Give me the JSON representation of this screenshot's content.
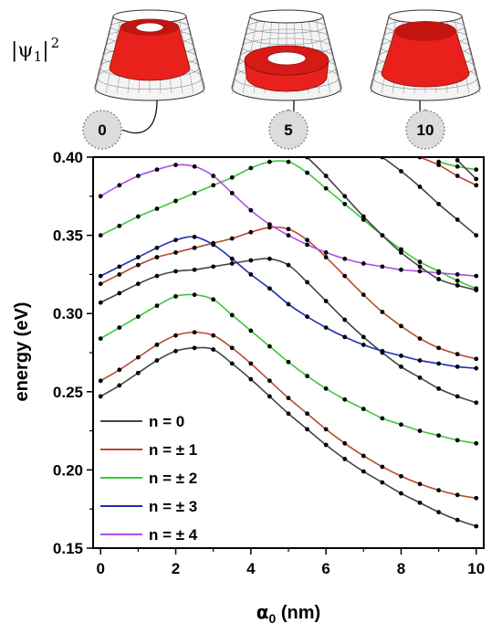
{
  "header": {
    "label_prefix": "|ψ",
    "label_sub": "1",
    "label_suffix": "|",
    "label_sup": "2",
    "insets": [
      {
        "alpha": "0",
        "shape": "ring"
      },
      {
        "alpha": "5",
        "shape": "torus"
      },
      {
        "alpha": "10",
        "shape": "dome"
      }
    ],
    "wire_color": "#333333",
    "density_color": "#e8211c"
  },
  "chart_data": {
    "type": "line",
    "xlabel_symbol": "α",
    "xlabel_sub": "0",
    "xlabel_unit": " (nm)",
    "ylabel": "energy (eV)",
    "xlim": [
      -0.2,
      10.2
    ],
    "ylim": [
      0.15,
      0.4
    ],
    "xticks": [
      0,
      2,
      4,
      6,
      8,
      10
    ],
    "yticks": [
      0.15,
      0.2,
      0.25,
      0.3,
      0.35,
      0.4
    ],
    "ytick_labels": [
      "0.15",
      "0.20",
      "0.25",
      "0.30",
      "0.35",
      "0.40"
    ],
    "grid": false,
    "legend_position": "bottom-left",
    "legend": [
      {
        "label": "n = 0",
        "color": "#444444"
      },
      {
        "label": "n = ± 1",
        "color": "#b84a2e"
      },
      {
        "label": "n = ± 2",
        "color": "#3ec83c"
      },
      {
        "label": "n = ± 3",
        "color": "#1f2fb8"
      },
      {
        "label": "n = ± 4",
        "color": "#b04cf0"
      }
    ],
    "x": [
      0,
      0.5,
      1,
      1.5,
      2,
      2.5,
      3,
      3.5,
      4,
      4.5,
      5,
      5.5,
      6,
      6.5,
      7,
      7.5,
      8,
      8.5,
      9,
      9.5,
      10
    ],
    "series": [
      {
        "legend_index": 0,
        "values": [
          0.247,
          0.254,
          0.262,
          0.27,
          0.276,
          0.278,
          0.277,
          0.268,
          0.258,
          0.247,
          0.236,
          0.226,
          0.216,
          0.207,
          0.199,
          0.192,
          0.185,
          0.179,
          0.173,
          0.168,
          0.164
        ]
      },
      {
        "legend_index": 1,
        "values": [
          0.257,
          0.264,
          0.272,
          0.28,
          0.286,
          0.288,
          0.286,
          0.278,
          0.268,
          0.257,
          0.246,
          0.236,
          0.226,
          0.217,
          0.209,
          0.202,
          0.196,
          0.191,
          0.187,
          0.184,
          0.182
        ]
      },
      {
        "legend_index": 2,
        "values": [
          0.284,
          0.291,
          0.298,
          0.305,
          0.311,
          0.312,
          0.309,
          0.299,
          0.289,
          0.279,
          0.269,
          0.26,
          0.252,
          0.245,
          0.239,
          0.233,
          0.229,
          0.225,
          0.222,
          0.219,
          0.217
        ]
      },
      {
        "legend_index": 0,
        "values": [
          0.307,
          0.313,
          0.319,
          0.324,
          0.327,
          0.328,
          0.33,
          0.332,
          0.334,
          0.335,
          0.331,
          0.32,
          0.308,
          0.296,
          0.285,
          0.275,
          0.266,
          0.259,
          0.252,
          0.247,
          0.243
        ]
      },
      {
        "legend_index": 3,
        "values": [
          0.324,
          0.33,
          0.336,
          0.342,
          0.347,
          0.349,
          0.344,
          0.335,
          0.325,
          0.316,
          0.306,
          0.298,
          0.291,
          0.285,
          0.28,
          0.276,
          0.273,
          0.27,
          0.268,
          0.266,
          0.265
        ]
      },
      {
        "legend_index": 1,
        "values": [
          0.319,
          0.325,
          0.331,
          0.336,
          0.339,
          0.342,
          0.345,
          0.348,
          0.352,
          0.355,
          0.354,
          0.347,
          0.336,
          0.324,
          0.312,
          0.301,
          0.292,
          0.284,
          0.278,
          0.274,
          0.271
        ]
      },
      {
        "legend_index": 2,
        "values": [
          0.35,
          0.356,
          0.362,
          0.367,
          0.372,
          0.377,
          0.382,
          0.387,
          0.393,
          0.397,
          0.397,
          0.39,
          0.38,
          0.37,
          0.36,
          0.35,
          0.341,
          0.333,
          0.327,
          0.321,
          0.316
        ]
      },
      {
        "legend_index": 4,
        "values": [
          0.375,
          0.382,
          0.388,
          0.392,
          0.395,
          0.394,
          0.388,
          0.377,
          0.366,
          0.357,
          0.35,
          0.344,
          0.339,
          0.335,
          0.332,
          0.33,
          0.328,
          0.327,
          0.326,
          0.325,
          0.324
        ]
      },
      {
        "legend_index": 0,
        "values": [
          null,
          null,
          null,
          null,
          null,
          null,
          null,
          null,
          null,
          null,
          null,
          0.4,
          0.388,
          0.375,
          0.362,
          0.35,
          0.339,
          0.33,
          0.322,
          0.318,
          0.315
        ]
      },
      {
        "legend_index": 0,
        "values": [
          null,
          null,
          null,
          null,
          null,
          null,
          null,
          null,
          null,
          null,
          null,
          null,
          null,
          null,
          null,
          0.4,
          0.391,
          0.381,
          0.37,
          0.36,
          0.35
        ]
      },
      {
        "legend_index": 1,
        "values": [
          null,
          null,
          null,
          null,
          null,
          null,
          null,
          null,
          null,
          null,
          null,
          null,
          null,
          null,
          null,
          null,
          null,
          0.4,
          0.395,
          0.388,
          0.382
        ]
      },
      {
        "legend_index": 2,
        "values": [
          null,
          null,
          null,
          null,
          null,
          null,
          null,
          null,
          null,
          null,
          null,
          null,
          null,
          null,
          null,
          null,
          null,
          null,
          0.397,
          0.394,
          0.392
        ]
      },
      {
        "legend_index": 0,
        "values": [
          null,
          null,
          null,
          null,
          null,
          null,
          null,
          null,
          null,
          null,
          null,
          null,
          null,
          null,
          null,
          null,
          null,
          null,
          null,
          0.398,
          0.386
        ]
      }
    ]
  }
}
